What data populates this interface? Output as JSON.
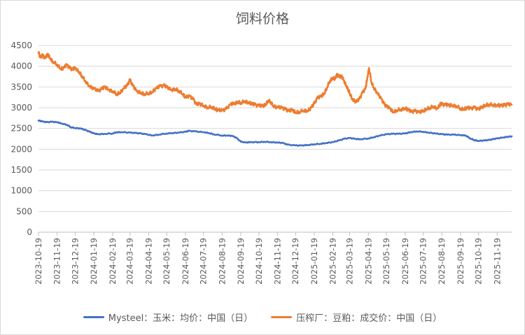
{
  "chart_data": {
    "type": "line",
    "title": "饲料价格",
    "xlabel": "",
    "ylabel": "",
    "ylim": [
      0,
      4500
    ],
    "yticks": [
      0,
      500,
      1000,
      1500,
      2000,
      2500,
      3000,
      3500,
      4000,
      4500
    ],
    "grid": "horizontal",
    "legend_position": "bottom",
    "x_tick_labels": [
      "2023-10-19",
      "2023-11-19",
      "2023-12-19",
      "2024-01-19",
      "2024-02-19",
      "2024-03-19",
      "2024-04-19",
      "2024-05-19",
      "2024-06-19",
      "2024-07-19",
      "2024-08-19",
      "2024-09-19",
      "2024-10-19",
      "2024-11-19",
      "2024-12-19",
      "2025-01-19",
      "2025-02-19",
      "2025-03-19",
      "2025-04-19",
      "2025-05-19",
      "2025-06-19",
      "2025-07-19",
      "2025-08-19",
      "2025-09-19",
      "2025-10-19",
      "2025-11-19"
    ],
    "x_end": "2025-12-13",
    "series": [
      {
        "name": "Mysteel：玉米：均价：中国（日）",
        "color": "#4472C4",
        "points": [
          [
            "2023-10-19",
            2690
          ],
          [
            "2023-10-25",
            2670
          ],
          [
            "2023-11-01",
            2650
          ],
          [
            "2023-11-10",
            2660
          ],
          [
            "2023-11-19",
            2650
          ],
          [
            "2023-11-26",
            2620
          ],
          [
            "2023-12-05",
            2590
          ],
          [
            "2023-12-12",
            2530
          ],
          [
            "2023-12-19",
            2510
          ],
          [
            "2023-12-28",
            2500
          ],
          [
            "2024-01-05",
            2460
          ],
          [
            "2024-01-12",
            2420
          ],
          [
            "2024-01-19",
            2380
          ],
          [
            "2024-01-26",
            2360
          ],
          [
            "2024-02-05",
            2370
          ],
          [
            "2024-02-19",
            2380
          ],
          [
            "2024-02-26",
            2410
          ],
          [
            "2024-03-05",
            2410
          ],
          [
            "2024-03-19",
            2400
          ],
          [
            "2024-03-28",
            2390
          ],
          [
            "2024-04-05",
            2380
          ],
          [
            "2024-04-15",
            2360
          ],
          [
            "2024-04-25",
            2330
          ],
          [
            "2024-05-05",
            2350
          ],
          [
            "2024-05-19",
            2380
          ],
          [
            "2024-05-29",
            2390
          ],
          [
            "2024-06-08",
            2400
          ],
          [
            "2024-06-19",
            2420
          ],
          [
            "2024-06-25",
            2440
          ],
          [
            "2024-07-05",
            2430
          ],
          [
            "2024-07-19",
            2410
          ],
          [
            "2024-07-28",
            2390
          ],
          [
            "2024-08-05",
            2360
          ],
          [
            "2024-08-19",
            2330
          ],
          [
            "2024-08-28",
            2330
          ],
          [
            "2024-09-05",
            2320
          ],
          [
            "2024-09-12",
            2270
          ],
          [
            "2024-09-19",
            2180
          ],
          [
            "2024-09-28",
            2160
          ],
          [
            "2024-10-05",
            2170
          ],
          [
            "2024-10-19",
            2170
          ],
          [
            "2024-10-28",
            2180
          ],
          [
            "2024-11-08",
            2170
          ],
          [
            "2024-11-19",
            2160
          ],
          [
            "2024-11-28",
            2150
          ],
          [
            "2024-12-05",
            2110
          ],
          [
            "2024-12-19",
            2090
          ],
          [
            "2024-12-29",
            2090
          ],
          [
            "2025-01-08",
            2100
          ],
          [
            "2025-01-19",
            2120
          ],
          [
            "2025-01-29",
            2130
          ],
          [
            "2025-02-08",
            2150
          ],
          [
            "2025-02-19",
            2170
          ],
          [
            "2025-03-01",
            2210
          ],
          [
            "2025-03-10",
            2250
          ],
          [
            "2025-03-19",
            2270
          ],
          [
            "2025-03-28",
            2250
          ],
          [
            "2025-04-05",
            2240
          ],
          [
            "2025-04-19",
            2260
          ],
          [
            "2025-04-28",
            2290
          ],
          [
            "2025-05-08",
            2330
          ],
          [
            "2025-05-19",
            2360
          ],
          [
            "2025-05-29",
            2370
          ],
          [
            "2025-06-08",
            2370
          ],
          [
            "2025-06-19",
            2380
          ],
          [
            "2025-06-28",
            2410
          ],
          [
            "2025-07-08",
            2430
          ],
          [
            "2025-07-19",
            2420
          ],
          [
            "2025-07-28",
            2400
          ],
          [
            "2025-08-08",
            2380
          ],
          [
            "2025-08-19",
            2360
          ],
          [
            "2025-08-28",
            2350
          ],
          [
            "2025-09-08",
            2350
          ],
          [
            "2025-09-19",
            2340
          ],
          [
            "2025-09-28",
            2330
          ],
          [
            "2025-10-05",
            2260
          ],
          [
            "2025-10-12",
            2220
          ],
          [
            "2025-10-19",
            2200
          ],
          [
            "2025-10-28",
            2210
          ],
          [
            "2025-11-05",
            2220
          ],
          [
            "2025-11-12",
            2240
          ],
          [
            "2025-11-19",
            2260
          ],
          [
            "2025-11-28",
            2280
          ],
          [
            "2025-12-06",
            2300
          ],
          [
            "2025-12-13",
            2310
          ]
        ]
      },
      {
        "name": "压榨厂：豆粕：成交价：中国（日）",
        "color": "#ED7D31",
        "points": [
          [
            "2023-10-19",
            4340
          ],
          [
            "2023-10-22",
            4210
          ],
          [
            "2023-10-26",
            4260
          ],
          [
            "2023-10-30",
            4190
          ],
          [
            "2023-11-03",
            4290
          ],
          [
            "2023-11-07",
            4200
          ],
          [
            "2023-11-12",
            4110
          ],
          [
            "2023-11-19",
            4040
          ],
          [
            "2023-11-25",
            3940
          ],
          [
            "2023-11-30",
            3960
          ],
          [
            "2023-12-05",
            4030
          ],
          [
            "2023-12-10",
            3950
          ],
          [
            "2023-12-15",
            3920
          ],
          [
            "2023-12-19",
            3960
          ],
          [
            "2023-12-25",
            3870
          ],
          [
            "2023-12-30",
            3770
          ],
          [
            "2024-01-05",
            3640
          ],
          [
            "2024-01-12",
            3510
          ],
          [
            "2024-01-19",
            3460
          ],
          [
            "2024-01-26",
            3400
          ],
          [
            "2024-02-01",
            3450
          ],
          [
            "2024-02-06",
            3500
          ],
          [
            "2024-02-12",
            3440
          ],
          [
            "2024-02-19",
            3400
          ],
          [
            "2024-02-26",
            3330
          ],
          [
            "2024-03-02",
            3360
          ],
          [
            "2024-03-08",
            3460
          ],
          [
            "2024-03-14",
            3530
          ],
          [
            "2024-03-19",
            3670
          ],
          [
            "2024-03-24",
            3520
          ],
          [
            "2024-03-30",
            3400
          ],
          [
            "2024-04-06",
            3360
          ],
          [
            "2024-04-12",
            3330
          ],
          [
            "2024-04-19",
            3350
          ],
          [
            "2024-04-25",
            3380
          ],
          [
            "2024-05-01",
            3460
          ],
          [
            "2024-05-08",
            3520
          ],
          [
            "2024-05-15",
            3530
          ],
          [
            "2024-05-19",
            3500
          ],
          [
            "2024-05-26",
            3430
          ],
          [
            "2024-06-02",
            3450
          ],
          [
            "2024-06-08",
            3410
          ],
          [
            "2024-06-15",
            3330
          ],
          [
            "2024-06-19",
            3250
          ],
          [
            "2024-06-26",
            3280
          ],
          [
            "2024-07-02",
            3200
          ],
          [
            "2024-07-08",
            3070
          ],
          [
            "2024-07-12",
            3100
          ],
          [
            "2024-07-19",
            3050
          ],
          [
            "2024-07-26",
            3010
          ],
          [
            "2024-08-02",
            3020
          ],
          [
            "2024-08-08",
            2970
          ],
          [
            "2024-08-12",
            2940
          ],
          [
            "2024-08-19",
            2930
          ],
          [
            "2024-08-26",
            2970
          ],
          [
            "2024-09-02",
            3080
          ],
          [
            "2024-09-08",
            3100
          ],
          [
            "2024-09-14",
            3140
          ],
          [
            "2024-09-19",
            3120
          ],
          [
            "2024-09-26",
            3160
          ],
          [
            "2024-10-02",
            3120
          ],
          [
            "2024-10-08",
            3090
          ],
          [
            "2024-10-12",
            3070
          ],
          [
            "2024-10-19",
            3050
          ],
          [
            "2024-10-25",
            3040
          ],
          [
            "2024-10-30",
            3070
          ],
          [
            "2024-11-03",
            3170
          ],
          [
            "2024-11-08",
            3140
          ],
          [
            "2024-11-12",
            3040
          ],
          [
            "2024-11-19",
            3010
          ],
          [
            "2024-11-26",
            3000
          ],
          [
            "2024-12-02",
            2960
          ],
          [
            "2024-12-08",
            2920
          ],
          [
            "2024-12-14",
            2950
          ],
          [
            "2024-12-19",
            2890
          ],
          [
            "2024-12-25",
            2900
          ],
          [
            "2025-01-02",
            2940
          ],
          [
            "2025-01-08",
            2920
          ],
          [
            "2025-01-14",
            3000
          ],
          [
            "2025-01-19",
            3100
          ],
          [
            "2025-01-24",
            3230
          ],
          [
            "2025-01-30",
            3270
          ],
          [
            "2025-02-04",
            3330
          ],
          [
            "2025-02-09",
            3480
          ],
          [
            "2025-02-14",
            3650
          ],
          [
            "2025-02-19",
            3720
          ],
          [
            "2025-02-23",
            3700
          ],
          [
            "2025-02-26",
            3800
          ],
          [
            "2025-03-01",
            3750
          ],
          [
            "2025-03-05",
            3760
          ],
          [
            "2025-03-09",
            3660
          ],
          [
            "2025-03-13",
            3540
          ],
          [
            "2025-03-17",
            3420
          ],
          [
            "2025-03-19",
            3350
          ],
          [
            "2025-03-24",
            3190
          ],
          [
            "2025-03-30",
            3140
          ],
          [
            "2025-04-04",
            3210
          ],
          [
            "2025-04-09",
            3360
          ],
          [
            "2025-04-14",
            3450
          ],
          [
            "2025-04-17",
            3700
          ],
          [
            "2025-04-20",
            3960
          ],
          [
            "2025-04-24",
            3620
          ],
          [
            "2025-04-28",
            3480
          ],
          [
            "2025-05-04",
            3350
          ],
          [
            "2025-05-10",
            3220
          ],
          [
            "2025-05-15",
            3090
          ],
          [
            "2025-05-19",
            3030
          ],
          [
            "2025-05-25",
            2980
          ],
          [
            "2025-05-30",
            2900
          ],
          [
            "2025-06-05",
            2940
          ],
          [
            "2025-06-12",
            2960
          ],
          [
            "2025-06-19",
            2990
          ],
          [
            "2025-06-24",
            2950
          ],
          [
            "2025-06-29",
            2900
          ],
          [
            "2025-07-05",
            2920
          ],
          [
            "2025-07-12",
            2890
          ],
          [
            "2025-07-19",
            2920
          ],
          [
            "2025-07-24",
            2970
          ],
          [
            "2025-07-30",
            3000
          ],
          [
            "2025-08-05",
            3030
          ],
          [
            "2025-08-12",
            2980
          ],
          [
            "2025-08-17",
            3100
          ],
          [
            "2025-08-19",
            3080
          ],
          [
            "2025-08-25",
            3070
          ],
          [
            "2025-08-30",
            3060
          ],
          [
            "2025-09-05",
            3060
          ],
          [
            "2025-09-12",
            3040
          ],
          [
            "2025-09-19",
            2980
          ],
          [
            "2025-09-25",
            2970
          ],
          [
            "2025-09-30",
            3000
          ],
          [
            "2025-10-05",
            2980
          ],
          [
            "2025-10-12",
            3000
          ],
          [
            "2025-10-19",
            2960
          ],
          [
            "2025-10-24",
            3010
          ],
          [
            "2025-10-30",
            3060
          ],
          [
            "2025-11-05",
            3080
          ],
          [
            "2025-11-12",
            3070
          ],
          [
            "2025-11-19",
            3060
          ],
          [
            "2025-11-25",
            3050
          ],
          [
            "2025-12-01",
            3060
          ],
          [
            "2025-12-06",
            3080
          ],
          [
            "2025-12-13",
            3070
          ]
        ]
      }
    ]
  }
}
